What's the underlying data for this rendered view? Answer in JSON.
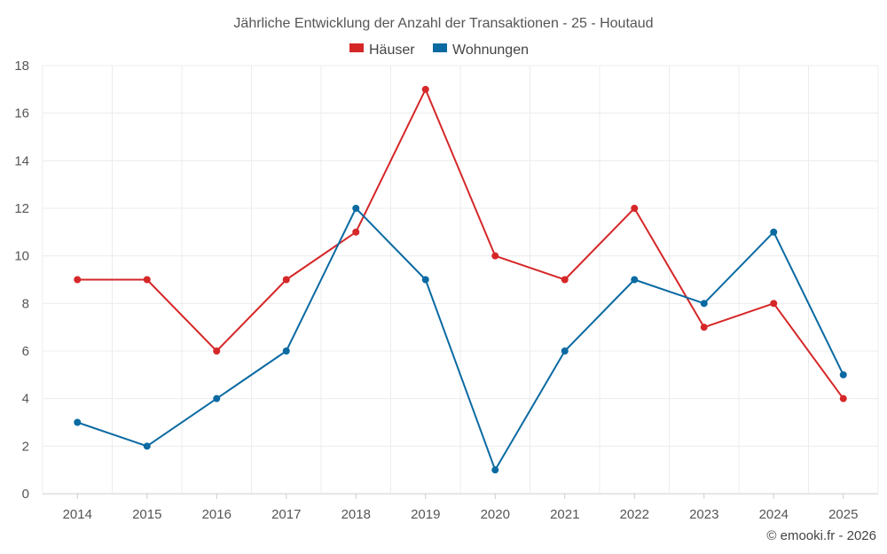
{
  "chart_data": {
    "type": "line",
    "title": "Jährliche Entwicklung der Anzahl der Transaktionen - 25 - Houtaud",
    "xlabel": "",
    "ylabel": "",
    "categories": [
      "2014",
      "2015",
      "2016",
      "2017",
      "2018",
      "2019",
      "2020",
      "2021",
      "2022",
      "2023",
      "2024",
      "2025"
    ],
    "ylim": [
      0,
      18
    ],
    "yticks": [
      0,
      2,
      4,
      6,
      8,
      10,
      12,
      14,
      16,
      18
    ],
    "grid": true,
    "legend_position": "top-center",
    "series": [
      {
        "name": "Häuser",
        "color": "#d62728",
        "values": [
          9,
          9,
          6,
          9,
          11,
          17,
          10,
          9,
          12,
          7,
          8,
          4
        ]
      },
      {
        "name": "Wohnungen",
        "color": "#0b6aa2",
        "values": [
          3,
          2,
          4,
          6,
          12,
          9,
          1,
          6,
          9,
          8,
          11,
          5
        ]
      }
    ]
  },
  "credit": "© emooki.fr - 2026"
}
